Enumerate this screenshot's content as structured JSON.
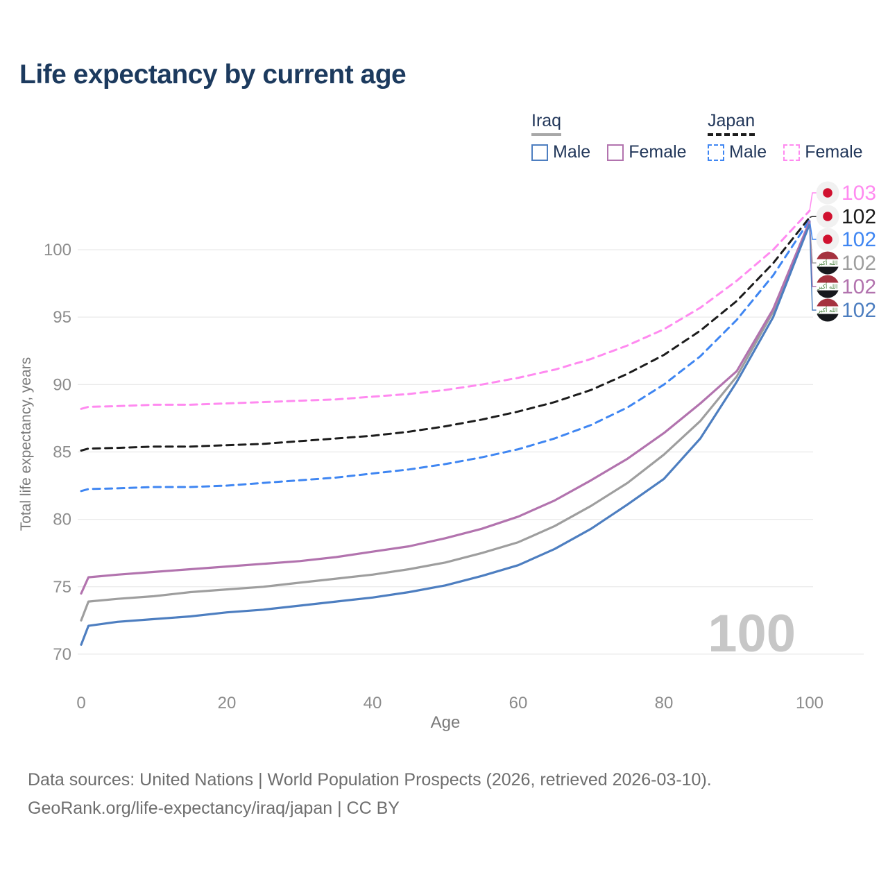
{
  "title": "Life expectancy by current age",
  "legend": {
    "groups": [
      {
        "country": "Iraq",
        "underline_style": "solid",
        "underline_color": "#a8a8a8",
        "items": [
          {
            "label": "Male",
            "color": "#4d7ec0",
            "line": "solid"
          },
          {
            "label": "Female",
            "color": "#b273ae",
            "line": "solid"
          }
        ]
      },
      {
        "country": "Japan",
        "underline_style": "dashed",
        "underline_color": "#1c1c1c",
        "items": [
          {
            "label": "Male",
            "color": "#3f86f2",
            "line": "dashed"
          },
          {
            "label": "Female",
            "color": "#ff8af0",
            "line": "dashed"
          }
        ]
      }
    ]
  },
  "chart_data": {
    "type": "line",
    "title": "Life expectancy by current age",
    "xlabel": "Age",
    "ylabel": "Total life expectancy, years",
    "xlim": [
      0,
      100
    ],
    "ylim": [
      69,
      104.5
    ],
    "x_ticks": [
      0,
      20,
      40,
      60,
      80,
      100
    ],
    "y_ticks": [
      70,
      75,
      80,
      85,
      90,
      95,
      100
    ],
    "grid": true,
    "legend_position": "top-right",
    "age_indicator_watermark": "100",
    "x": [
      0,
      1,
      5,
      10,
      15,
      20,
      25,
      30,
      35,
      40,
      45,
      50,
      55,
      60,
      65,
      70,
      75,
      80,
      85,
      90,
      95,
      100
    ],
    "series": [
      {
        "name": "Japan Female",
        "country": "Japan",
        "sex": "Female",
        "line": "dashed",
        "color": "#ff8af0",
        "flag": "japan",
        "end_label": "103",
        "values": [
          88.2,
          88.35,
          88.4,
          88.5,
          88.5,
          88.6,
          88.7,
          88.8,
          88.9,
          89.1,
          89.3,
          89.6,
          90.0,
          90.5,
          91.1,
          91.9,
          92.9,
          94.1,
          95.7,
          97.7,
          100.0,
          102.9
        ]
      },
      {
        "name": "Japan Total",
        "country": "Japan",
        "sex": "All",
        "line": "dashed",
        "color": "#1c1c1c",
        "flag": "japan",
        "end_label": "102",
        "values": [
          85.1,
          85.25,
          85.3,
          85.4,
          85.4,
          85.5,
          85.6,
          85.8,
          86.0,
          86.2,
          86.5,
          86.9,
          87.4,
          88.0,
          88.7,
          89.6,
          90.8,
          92.2,
          94.0,
          96.2,
          99.0,
          102.4
        ]
      },
      {
        "name": "Japan Male",
        "country": "Japan",
        "sex": "Male",
        "line": "dashed",
        "color": "#3f86f2",
        "flag": "japan",
        "end_label": "102",
        "values": [
          82.1,
          82.25,
          82.3,
          82.4,
          82.4,
          82.5,
          82.7,
          82.9,
          83.1,
          83.4,
          83.7,
          84.1,
          84.6,
          85.2,
          86.0,
          87.0,
          88.3,
          90.0,
          92.1,
          94.8,
          98.1,
          102.2
        ]
      },
      {
        "name": "Iraq Total",
        "country": "Iraq",
        "sex": "All",
        "line": "solid",
        "color": "#9e9e9e",
        "flag": "iraq",
        "end_label": "102",
        "values": [
          72.5,
          73.9,
          74.1,
          74.3,
          74.6,
          74.8,
          75.0,
          75.3,
          75.6,
          75.9,
          76.3,
          76.8,
          77.5,
          78.3,
          79.5,
          81.0,
          82.7,
          84.8,
          87.3,
          90.6,
          95.4,
          102.0
        ]
      },
      {
        "name": "Iraq Female",
        "country": "Iraq",
        "sex": "Female",
        "line": "solid",
        "color": "#b273ae",
        "flag": "iraq",
        "end_label": "102",
        "values": [
          74.5,
          75.7,
          75.9,
          76.1,
          76.3,
          76.5,
          76.7,
          76.9,
          77.2,
          77.6,
          78.0,
          78.6,
          79.3,
          80.2,
          81.4,
          82.9,
          84.5,
          86.4,
          88.6,
          91.0,
          95.6,
          102.1
        ]
      },
      {
        "name": "Iraq Male",
        "country": "Iraq",
        "sex": "Male",
        "line": "solid",
        "color": "#4d7ec0",
        "flag": "iraq",
        "end_label": "102",
        "values": [
          70.7,
          72.1,
          72.4,
          72.6,
          72.8,
          73.1,
          73.3,
          73.6,
          73.9,
          74.2,
          74.6,
          75.1,
          75.8,
          76.6,
          77.8,
          79.3,
          81.1,
          83.0,
          86.0,
          90.2,
          95.0,
          101.9
        ]
      }
    ]
  },
  "footer": {
    "line1": "Data sources: United Nations | World Population Prospects (2026, retrieved 2026-03-10).",
    "line2": "GeoRank.org/life-expectancy/iraq/japan | CC BY"
  },
  "flags": {
    "japan": {
      "bg": "#f1f1f1",
      "dot": "#d0112f"
    },
    "iraq": {
      "red": "#a5323f",
      "white": "#ffffff",
      "black": "#16181d",
      "green": "#3e7a33",
      "script": "الله أكبر"
    }
  },
  "colors": {
    "grid": "#eaeaea",
    "axis_text": "#8c8c8c",
    "axis_title": "#7a7a7a",
    "watermark": "#c7c7c7",
    "title_text": "#1c3a5e",
    "legend_text": "#22375a",
    "footer_text": "#6e6e6e"
  }
}
